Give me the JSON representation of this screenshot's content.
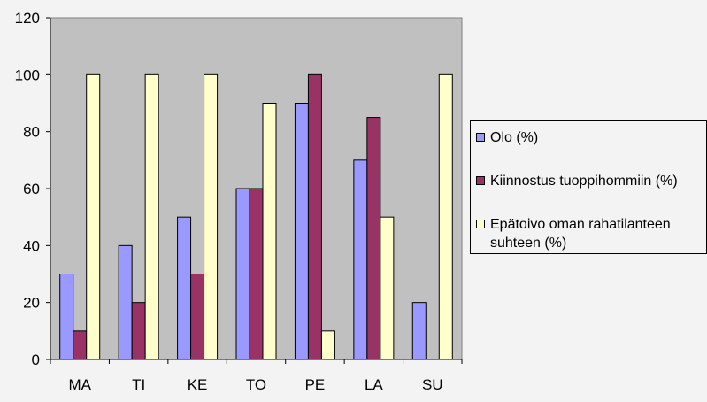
{
  "chart_data": {
    "type": "bar",
    "categories": [
      "MA",
      "TI",
      "KE",
      "TO",
      "PE",
      "LA",
      "SU"
    ],
    "series": [
      {
        "name": "Olo (%)",
        "color": "#9999ff",
        "values": [
          30,
          40,
          50,
          60,
          90,
          70,
          20
        ]
      },
      {
        "name": "Kiinnostus tuoppihommiin (%)",
        "color": "#993366",
        "values": [
          10,
          20,
          30,
          60,
          100,
          85,
          0
        ]
      },
      {
        "name": "Epätoivo oman rahatilanteen suhteen (%)",
        "color": "#ffffcc",
        "values": [
          100,
          100,
          100,
          90,
          10,
          50,
          100
        ]
      }
    ],
    "ylim": [
      0,
      120
    ],
    "yticks": [
      "0",
      "20",
      "40",
      "60",
      "80",
      "100",
      "120"
    ],
    "plot_background": "#c0c0c0",
    "legend_position": "right",
    "grid": false
  }
}
